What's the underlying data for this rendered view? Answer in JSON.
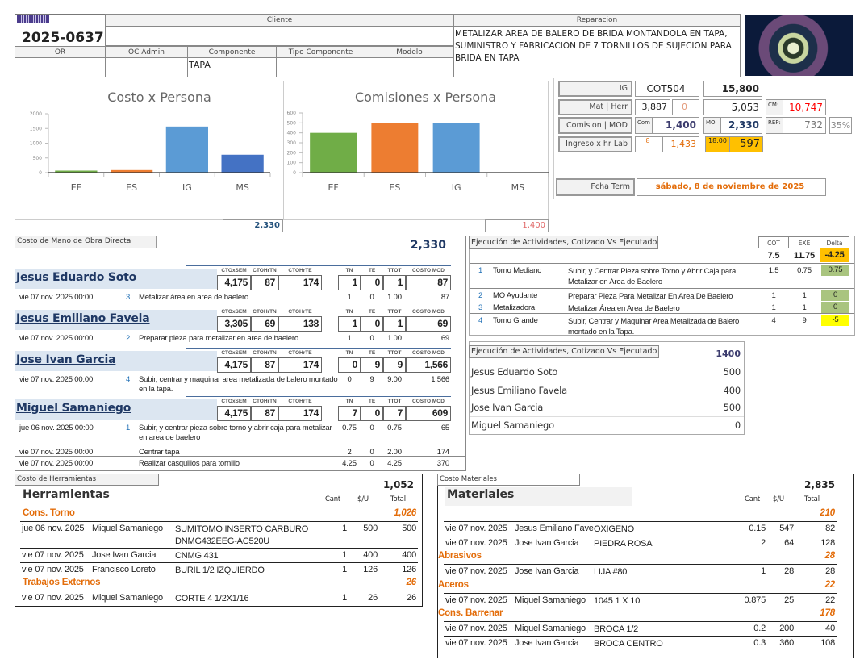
{
  "header": {
    "order_number": "2025-0637",
    "cliente_label": "Cliente",
    "cliente_value": "",
    "reparacion_label": "Reparacion",
    "reparacion_text": "METALIZAR AREA DE BALERO DE BRIDA MONTANDOLA EN TAPA, SUMINISTRO Y FABRICACION DE 7 TORNILLOS DE SUJECION PARA BRIDA EN TAPA",
    "columns": [
      {
        "label": "OR",
        "value": ""
      },
      {
        "label": "OC Admin",
        "value": ""
      },
      {
        "label": "Componente",
        "value": "TAPA"
      },
      {
        "label": "Tipo Componente",
        "value": ""
      },
      {
        "label": "Modelo",
        "value": ""
      }
    ]
  },
  "chart_data": [
    {
      "type": "bar",
      "title": "Costo x Persona",
      "categories": [
        "EF",
        "ES",
        "IG",
        "MS"
      ],
      "values": [
        69,
        87,
        1566,
        609
      ],
      "colors": [
        "#70ad47",
        "#ed7d31",
        "#5b9bd5",
        "#4472c4"
      ],
      "ylim": [
        0,
        2000
      ],
      "yticks": [
        0,
        500,
        1000,
        1500,
        2000
      ]
    },
    {
      "type": "bar",
      "title": "Comisiones x Persona",
      "categories": [
        "EF",
        "ES",
        "IG",
        "MS"
      ],
      "values": [
        400,
        500,
        500,
        0
      ],
      "colors": [
        "#70ad47",
        "#ed7d31",
        "#5b9bd5",
        "#4472c4"
      ],
      "ylim": [
        0,
        600
      ],
      "yticks": [
        0,
        100,
        200,
        300,
        400,
        500,
        600
      ]
    }
  ],
  "chart_totals": {
    "costo": "2,330",
    "comisiones": "1,400"
  },
  "kpi": {
    "ig_label": "IG",
    "ig_code": "COT504",
    "ig_value": "15,800",
    "mat_label": "Mat | Herr",
    "mat": "3,887",
    "herr": "0",
    "mat_herr_total": "5,053",
    "cm_label": "CM:",
    "cm_value": "10,747",
    "com_mod_label": "Comision |  MOD",
    "com_label": "Com",
    "com_value": "1,400",
    "mo_label": "MO:",
    "mo_value": "2,330",
    "rep_label": "REP:",
    "rep_value": "732",
    "rep_pct": "35%",
    "ingreso_label": "Ingreso x hr Lab",
    "hrs": "8",
    "ingreso_value": "1,433",
    "hrs2": "18.00",
    "ingreso2": "597",
    "fecha_label": "Fcha Term",
    "fecha_value": "sábado, 8 de noviembre de 2025",
    "colors": {
      "highlight": "#ffc000",
      "red": "#ff0000",
      "orange": "#e36c09"
    }
  },
  "mod": {
    "title": "Costo de Mano de Obra Directa",
    "total": "2,330",
    "col_labels": [
      "CTOxSEM",
      "CTOHrTN",
      "CTOHrTE",
      "TN",
      "TE",
      "TTOT",
      "COSTO MOD"
    ],
    "people": [
      {
        "name": "Jesus Eduardo Soto",
        "stats": [
          "4,175",
          "87",
          "174",
          "1",
          "0",
          "1",
          "87"
        ],
        "tasks": [
          {
            "date": "vie 07 nov. 2025 00:00",
            "num": "3",
            "desc": "Metalizar área en area de baelero",
            "tn": "1",
            "te": "0",
            "ttot": "1.00",
            "costo": "87"
          }
        ]
      },
      {
        "name": "Jesus Emiliano Favela",
        "stats": [
          "3,305",
          "69",
          "138",
          "1",
          "0",
          "1",
          "69"
        ],
        "tasks": [
          {
            "date": "vie 07 nov. 2025 00:00",
            "num": "2",
            "desc": "Preparar pieza para metalizar en area de baelero",
            "tn": "1",
            "te": "0",
            "ttot": "1.00",
            "costo": "69"
          }
        ]
      },
      {
        "name": "Jose Ivan Garcia",
        "stats": [
          "4,175",
          "87",
          "174",
          "0",
          "9",
          "9",
          "1,566"
        ],
        "tasks": [
          {
            "date": "vie 07 nov. 2025 00:00",
            "num": "4",
            "desc": "Subir, centrar y maquinar area metalizada de balero montado en la tapa.",
            "tn": "0",
            "te": "9",
            "ttot": "9.00",
            "costo": "1,566"
          }
        ]
      },
      {
        "name": "Miguel Samaniego",
        "stats": [
          "4,175",
          "87",
          "174",
          "7",
          "0",
          "7",
          "609"
        ],
        "tasks": [
          {
            "date": "jue 06 nov. 2025 00:00",
            "num": "1",
            "desc": "Subir, y centrar pieza sobre torno y abrir caja para metalizar en area de baelero",
            "tn": "0.75",
            "te": "0",
            "ttot": "0.75",
            "costo": "65"
          },
          {
            "date": "vie 07 nov. 2025 00:00",
            "num": "",
            "desc": "Centrar tapa",
            "tn": "2",
            "te": "0",
            "ttot": "2.00",
            "costo": "174"
          },
          {
            "date": "vie 07 nov. 2025 00:00",
            "num": "",
            "desc": "Realizar casquillos para tornillo",
            "tn": "4.25",
            "te": "0",
            "ttot": "4.25",
            "costo": "370"
          }
        ]
      }
    ]
  },
  "ejecucion": {
    "title": "Ejecución de Actividades, Cotizado Vs Ejecutado",
    "headers": [
      "COT",
      "EXE",
      "Delta"
    ],
    "totals": {
      "cot": "7.5",
      "exe": "11.75",
      "delta": "-4.25"
    },
    "rows": [
      {
        "num": "1",
        "machine": "Torno Mediano",
        "desc": "Subir, y Centrar Pieza sobre Torno y Abrir Caja para Metalizar en Area de Baelero",
        "cot": "1.5",
        "exe": "0.75",
        "delta": "0.75",
        "delta_color": "#a9c47f"
      },
      {
        "num": "2",
        "machine": "MO Ayudante",
        "desc": "Preparar Pieza Para Metalizar En Area De Baelero",
        "cot": "1",
        "exe": "1",
        "delta": "0",
        "delta_color": "#a9c47f"
      },
      {
        "num": "3",
        "machine": "Metalizadora",
        "desc": "Metalizar Área en Area de Baelero",
        "cot": "1",
        "exe": "1",
        "delta": "0",
        "delta_color": "#a9c47f"
      },
      {
        "num": "4",
        "machine": "Torno Grande",
        "desc": "Subir, Centrar y Maquinar Area Metalizada de Balero montado en la Tapa.",
        "cot": "4",
        "exe": "9",
        "delta": "-5",
        "delta_color": "#ffff00"
      }
    ]
  },
  "comisiones": {
    "title": "Ejecución de Actividades, Cotizado Vs Ejecutado",
    "total": "1400",
    "rows": [
      {
        "name": "Jesus Eduardo Soto",
        "value": "500"
      },
      {
        "name": "Jesus Emiliano Favela",
        "value": "400"
      },
      {
        "name": "Jose Ivan Garcia",
        "value": "500"
      },
      {
        "name": "Miguel Samaniego",
        "value": "0"
      }
    ]
  },
  "herramientas": {
    "tab_label": "Costo de Herramientas",
    "title": "Herramientas",
    "total": "1,052",
    "headers": [
      "Cant",
      "$/U",
      "Total"
    ],
    "groups": [
      {
        "name": "Cons. Torno",
        "total": "1,026",
        "items": [
          {
            "date": "jue 06 nov. 2025",
            "person": "Miquel Samaniego",
            "desc": "SUMITOMO INSERTO CARBURO DNMG432EEG-AC520U",
            "cant": "1",
            "su": "500",
            "total": "500"
          },
          {
            "date": "vie 07 nov. 2025",
            "person": "Jose Ivan Garcia",
            "desc": "CNMG 431",
            "cant": "1",
            "su": "400",
            "total": "400"
          },
          {
            "date": "vie 07 nov. 2025",
            "person": "Francisco Loreto",
            "desc": "BURIL 1/2 IZQUIERDO",
            "cant": "1",
            "su": "126",
            "total": "126"
          }
        ]
      },
      {
        "name": "Trabajos Externos",
        "total": "26",
        "items": [
          {
            "date": "vie 07 nov. 2025",
            "person": "Miquel Samaniego",
            "desc": "CORTE 4 1/2X1/16",
            "cant": "1",
            "su": "26",
            "total": "26"
          }
        ]
      }
    ]
  },
  "materiales": {
    "tab_label": "Costo Materiales",
    "title": "Materiales",
    "total": "2,835",
    "headers": [
      "Cant",
      "$/U",
      "Total"
    ],
    "groups": [
      {
        "name": "",
        "total": "210",
        "items": [
          {
            "date": "vie 07 nov. 2025",
            "person": "Jesus Emiliano Fave",
            "desc": "OXIGENO",
            "cant": "0.15",
            "su": "547",
            "total": "82"
          },
          {
            "date": "vie 07 nov. 2025",
            "person": "Jose Ivan Garcia",
            "desc": "PIEDRA ROSA",
            "cant": "2",
            "su": "64",
            "total": "128"
          }
        ]
      },
      {
        "name": "Abrasivos",
        "total": "28",
        "items": [
          {
            "date": "vie 07 nov. 2025",
            "person": "Jose Ivan Garcia",
            "desc": "LIJA #80",
            "cant": "1",
            "su": "28",
            "total": "28"
          }
        ]
      },
      {
        "name": "Aceros",
        "total": "22",
        "items": [
          {
            "date": "vie 07 nov. 2025",
            "person": "Miquel Samaniego",
            "desc": "1045 1 X 10",
            "cant": "0.875",
            "su": "25",
            "total": "22"
          }
        ]
      },
      {
        "name": "Cons. Barrenar",
        "total": "178",
        "items": [
          {
            "date": "vie 07 nov. 2025",
            "person": "Miquel Samaniego",
            "desc": "BROCA 1/2",
            "cant": "0.2",
            "su": "200",
            "total": "40"
          },
          {
            "date": "vie 07 nov. 2025",
            "person": "Jose Ivan Garcia",
            "desc": "BROCA CENTRO",
            "cant": "0.3",
            "su": "360",
            "total": "108"
          }
        ]
      }
    ]
  }
}
